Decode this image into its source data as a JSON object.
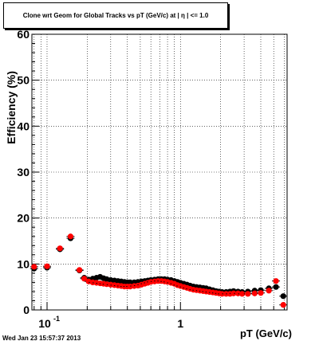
{
  "header": {
    "title": "Clone wrt Geom for Global Tracks vs pT (GeV/c) at | η | <= 1.0"
  },
  "footer": {
    "timestamp": "Wed Jan 23 15:57:37 2013"
  },
  "colors": {
    "series_black": "#000000",
    "series_red": "#ff0000",
    "grid": "#000000",
    "background": "#ffffff"
  },
  "chart_data": {
    "type": "scatter",
    "title": "Clone wrt Geom for Global Tracks vs pT (GeV/c) at | η | <= 1.0",
    "xlabel": "pT (GeV/c)",
    "ylabel": "Efficiency (%)",
    "xscale": "log",
    "xlim": [
      0.077,
      6.3
    ],
    "ylim": [
      0,
      60
    ],
    "xticks": [
      {
        "value": 0.1,
        "label": "10",
        "exponent": "-1"
      },
      {
        "value": 1,
        "label": "1",
        "exponent": ""
      }
    ],
    "yticks": [
      {
        "value": 0,
        "label": "0"
      },
      {
        "value": 10,
        "label": "10"
      },
      {
        "value": 20,
        "label": "20"
      },
      {
        "value": 30,
        "label": "30"
      },
      {
        "value": 40,
        "label": "40"
      },
      {
        "value": 50,
        "label": "50"
      },
      {
        "value": 60,
        "label": "60"
      }
    ],
    "grid": true,
    "series": [
      {
        "color": "#000000",
        "points": [
          [
            0.08,
            9.0
          ],
          [
            0.1,
            9.2
          ],
          [
            0.125,
            13.2
          ],
          [
            0.15,
            15.6
          ],
          [
            0.175,
            8.6
          ],
          [
            0.19,
            7.0
          ],
          [
            0.205,
            6.6
          ],
          [
            0.22,
            6.8
          ],
          [
            0.235,
            7.0
          ],
          [
            0.25,
            7.2
          ],
          [
            0.265,
            6.9
          ],
          [
            0.28,
            6.7
          ],
          [
            0.3,
            6.5
          ],
          [
            0.32,
            6.4
          ],
          [
            0.34,
            6.3
          ],
          [
            0.36,
            6.2
          ],
          [
            0.38,
            6.1
          ],
          [
            0.4,
            6.0
          ],
          [
            0.42,
            6.0
          ],
          [
            0.45,
            6.0
          ],
          [
            0.48,
            6.1
          ],
          [
            0.51,
            6.2
          ],
          [
            0.54,
            6.3
          ],
          [
            0.57,
            6.4
          ],
          [
            0.6,
            6.5
          ],
          [
            0.64,
            6.6
          ],
          [
            0.68,
            6.7
          ],
          [
            0.72,
            6.7
          ],
          [
            0.76,
            6.7
          ],
          [
            0.8,
            6.6
          ],
          [
            0.85,
            6.5
          ],
          [
            0.9,
            6.3
          ],
          [
            0.95,
            6.1
          ],
          [
            1.0,
            5.9
          ],
          [
            1.06,
            5.7
          ],
          [
            1.12,
            5.5
          ],
          [
            1.18,
            5.3
          ],
          [
            1.25,
            5.1
          ],
          [
            1.32,
            5.0
          ],
          [
            1.4,
            4.9
          ],
          [
            1.48,
            4.8
          ],
          [
            1.56,
            4.7
          ],
          [
            1.65,
            4.5
          ],
          [
            1.75,
            4.3
          ],
          [
            1.85,
            4.1
          ],
          [
            1.95,
            4.0
          ],
          [
            2.05,
            3.9
          ],
          [
            2.2,
            3.9
          ],
          [
            2.35,
            4.0
          ],
          [
            2.5,
            4.1
          ],
          [
            2.7,
            4.0
          ],
          [
            2.9,
            3.9
          ],
          [
            3.2,
            4.0
          ],
          [
            3.6,
            4.2
          ],
          [
            4.0,
            4.3
          ],
          [
            4.6,
            4.7
          ],
          [
            5.2,
            5.0
          ],
          [
            5.9,
            3.0
          ]
        ]
      },
      {
        "color": "#ff0000",
        "points": [
          [
            0.08,
            9.4
          ],
          [
            0.1,
            9.5
          ],
          [
            0.125,
            13.4
          ],
          [
            0.15,
            16.0
          ],
          [
            0.175,
            8.7
          ],
          [
            0.19,
            6.8
          ],
          [
            0.205,
            6.2
          ],
          [
            0.22,
            6.0
          ],
          [
            0.235,
            5.9
          ],
          [
            0.25,
            5.8
          ],
          [
            0.265,
            5.7
          ],
          [
            0.28,
            5.6
          ],
          [
            0.3,
            5.5
          ],
          [
            0.32,
            5.4
          ],
          [
            0.34,
            5.3
          ],
          [
            0.36,
            5.2
          ],
          [
            0.38,
            5.1
          ],
          [
            0.4,
            5.1
          ],
          [
            0.42,
            5.1
          ],
          [
            0.45,
            5.2
          ],
          [
            0.48,
            5.3
          ],
          [
            0.51,
            5.5
          ],
          [
            0.54,
            5.7
          ],
          [
            0.57,
            5.9
          ],
          [
            0.6,
            6.1
          ],
          [
            0.64,
            6.2
          ],
          [
            0.68,
            6.3
          ],
          [
            0.72,
            6.3
          ],
          [
            0.76,
            6.2
          ],
          [
            0.8,
            6.1
          ],
          [
            0.85,
            5.9
          ],
          [
            0.9,
            5.7
          ],
          [
            0.95,
            5.4
          ],
          [
            1.0,
            5.2
          ],
          [
            1.06,
            5.0
          ],
          [
            1.12,
            4.8
          ],
          [
            1.18,
            4.6
          ],
          [
            1.25,
            4.4
          ],
          [
            1.32,
            4.3
          ],
          [
            1.4,
            4.2
          ],
          [
            1.48,
            4.1
          ],
          [
            1.56,
            4.0
          ],
          [
            1.65,
            3.9
          ],
          [
            1.75,
            3.8
          ],
          [
            1.85,
            3.7
          ],
          [
            1.95,
            3.6
          ],
          [
            2.05,
            3.5
          ],
          [
            2.2,
            3.5
          ],
          [
            2.35,
            3.5
          ],
          [
            2.5,
            3.6
          ],
          [
            2.7,
            3.6
          ],
          [
            2.9,
            3.5
          ],
          [
            3.2,
            3.5
          ],
          [
            3.6,
            3.6
          ],
          [
            4.0,
            3.7
          ],
          [
            4.6,
            4.2
          ],
          [
            5.2,
            6.3
          ],
          [
            5.9,
            1.1
          ]
        ]
      }
    ]
  }
}
